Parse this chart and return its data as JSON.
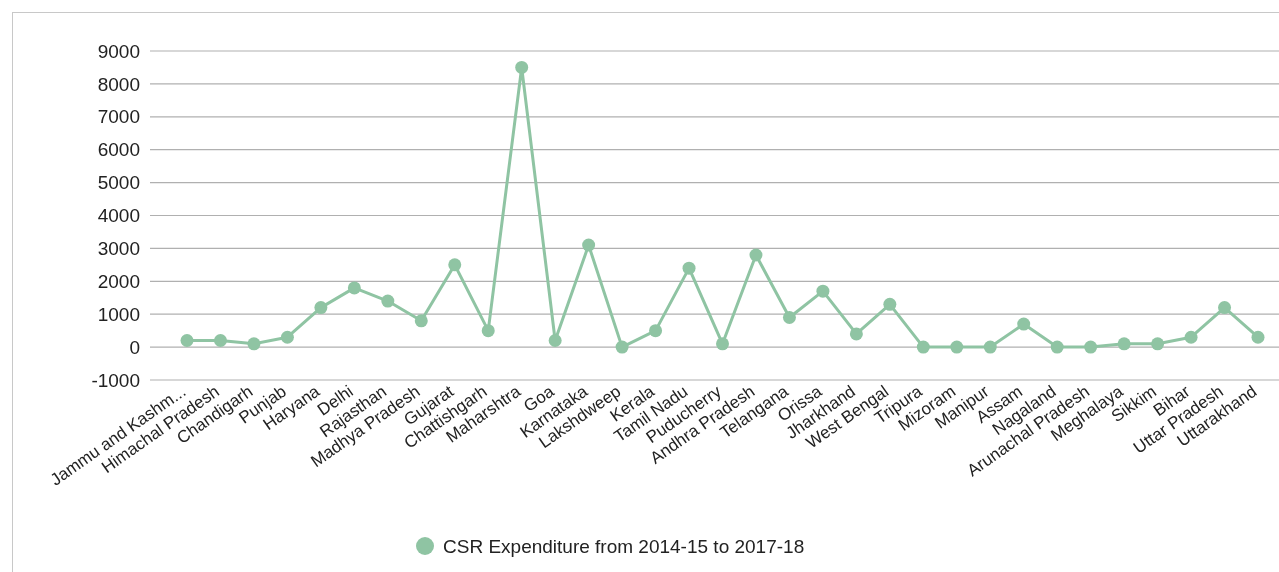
{
  "chart_data": {
    "type": "line",
    "categories": [
      "Jammu and Kashm...",
      "Himachal Pradesh",
      "Chandigarh",
      "Punjab",
      "Haryana",
      "Delhi",
      "Rajasthan",
      "Madhya Pradesh",
      "Gujarat",
      "Chattishgarh",
      "Maharshtra",
      "Goa",
      "Karnataka",
      "Lakshdweep",
      "Kerala",
      "Tamil Nadu",
      "Puducherry",
      "Andhra Pradesh",
      "Telangana",
      "Orissa",
      "Jharkhand",
      "West Bengal",
      "Tripura",
      "Mizoram",
      "Manipur",
      "Assam",
      "Nagaland",
      "Arunachal Pradesh",
      "Meghalaya",
      "Sikkim",
      "Bihar",
      "Uttar Pradesh",
      "Uttarakhand"
    ],
    "series": [
      {
        "name": "CSR Expenditure from 2014-15 to 2017-18",
        "color": "#8fc4a3",
        "values": [
          200,
          200,
          100,
          300,
          1200,
          1800,
          1400,
          800,
          2500,
          500,
          8500,
          200,
          3100,
          0,
          500,
          2400,
          100,
          2800,
          900,
          1700,
          400,
          1300,
          0,
          0,
          0,
          700,
          0,
          0,
          100,
          100,
          300,
          1200,
          300
        ]
      }
    ],
    "ylim": [
      -1000,
      9000
    ],
    "yticks": [
      -1000,
      0,
      1000,
      2000,
      3000,
      4000,
      5000,
      6000,
      7000,
      8000,
      9000
    ],
    "grid": "y",
    "legend": "bottom",
    "marker": "circle",
    "line_style": "solid"
  }
}
